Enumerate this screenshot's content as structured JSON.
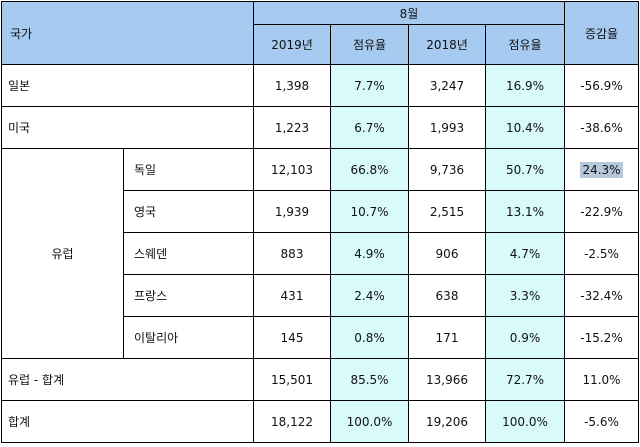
{
  "header": {
    "country": "국가",
    "month": "8월",
    "year_2019": "2019년",
    "year_2018": "2018년",
    "share_2019": "점유율",
    "share_2018": "점유율",
    "change": "증감율"
  },
  "rows": {
    "japan": {
      "label": "일본",
      "v2019": "1,398",
      "s2019": "7.7%",
      "v2018": "3,247",
      "s2018": "16.9%",
      "chg": "-56.9%"
    },
    "usa": {
      "label": "미국",
      "v2019": "1,223",
      "s2019": "6.7%",
      "v2018": "1,993",
      "s2018": "10.4%",
      "chg": "-38.6%"
    },
    "europe_group": "유럽",
    "germany": {
      "label": "독일",
      "v2019": "12,103",
      "s2019": "66.8%",
      "v2018": "9,736",
      "s2018": "50.7%",
      "chg": "24.3%"
    },
    "uk": {
      "label": "영국",
      "v2019": "1,939",
      "s2019": "10.7%",
      "v2018": "2,515",
      "s2018": "13.1%",
      "chg": "-22.9%"
    },
    "sweden": {
      "label": "스웨덴",
      "v2019": "883",
      "s2019": "4.9%",
      "v2018": "906",
      "s2018": "4.7%",
      "chg": "-2.5%"
    },
    "france": {
      "label": "프랑스",
      "v2019": "431",
      "s2019": "2.4%",
      "v2018": "638",
      "s2018": "3.3%",
      "chg": "-32.4%"
    },
    "italy": {
      "label": "이탈리아",
      "v2019": "145",
      "s2019": "0.8%",
      "v2018": "171",
      "s2018": "0.9%",
      "chg": "-15.2%"
    },
    "europe_total": {
      "label": "유럽 - 합계",
      "v2019": "15,501",
      "s2019": "85.5%",
      "v2018": "13,966",
      "s2018": "72.7%",
      "chg": "11.0%"
    },
    "total": {
      "label": "합계",
      "v2019": "18,122",
      "s2019": "100.0%",
      "v2018": "19,206",
      "s2018": "100.0%",
      "chg": "-5.6%"
    }
  },
  "colors": {
    "header_bg": "#a6caf0",
    "share_bg": "#d8fafa",
    "highlight_bg": "#b8c8dc"
  }
}
